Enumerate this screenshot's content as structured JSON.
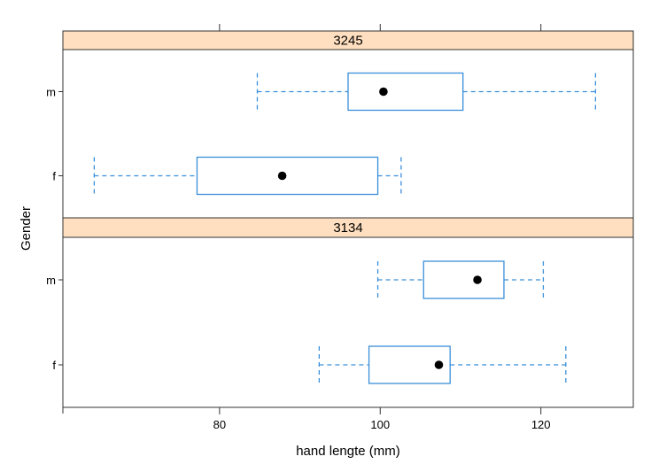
{
  "chart_data": {
    "type": "boxplot",
    "xlabel": "hand lengte (mm)",
    "ylabel": "Gender",
    "xlim": [
      60.5,
      131.5
    ],
    "xticks": [
      80,
      100,
      120
    ],
    "categories": [
      "m",
      "f"
    ],
    "colors": {
      "box": "#3a8fd9",
      "strip": "#ffdfbf",
      "dot": "#000000",
      "frame": "#333333"
    },
    "panels": [
      {
        "strip_label": "3245",
        "boxes": [
          {
            "group": "m",
            "whisker_low": 84.7,
            "q1": 96.0,
            "median": 100.4,
            "q3": 110.3,
            "whisker_high": 126.8
          },
          {
            "group": "f",
            "whisker_low": 64.4,
            "q1": 77.2,
            "median": 87.8,
            "q3": 99.7,
            "whisker_high": 102.6
          }
        ]
      },
      {
        "strip_label": "3134",
        "boxes": [
          {
            "group": "m",
            "whisker_low": 99.7,
            "q1": 105.4,
            "median": 112.1,
            "q3": 115.4,
            "whisker_high": 120.3
          },
          {
            "group": "f",
            "whisker_low": 92.4,
            "q1": 98.6,
            "median": 107.3,
            "q3": 108.7,
            "whisker_high": 123.1
          }
        ]
      }
    ]
  }
}
